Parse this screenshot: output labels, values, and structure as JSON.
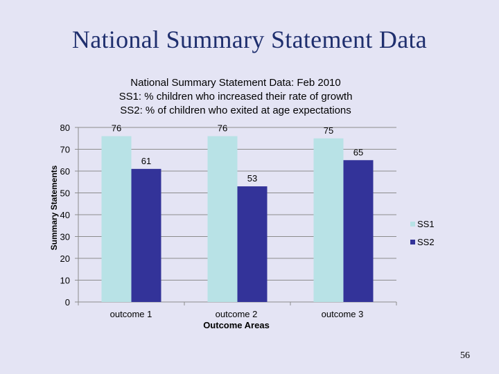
{
  "slide": {
    "title": "National Summary Statement Data",
    "page_number": "56"
  },
  "chart_data": {
    "type": "bar",
    "title_lines": [
      "National Summary Statement Data:  Feb 2010",
      "SS1:  % children who increased their rate of growth",
      "SS2:  % of children who exited at age expectations"
    ],
    "categories": [
      "outcome 1",
      "outcome 2",
      "outcome 3"
    ],
    "series": [
      {
        "name": "SS1",
        "values": [
          76,
          76,
          75
        ],
        "color": "#b8e2e6"
      },
      {
        "name": "SS2",
        "values": [
          61,
          53,
          65
        ],
        "color": "#333399"
      }
    ],
    "xlabel": "Outcome Areas",
    "ylabel": "Summary Statements",
    "ylim": [
      0,
      80
    ],
    "yticks": [
      0,
      10,
      20,
      30,
      40,
      50,
      60,
      70,
      80
    ],
    "grid": true,
    "legend": "right"
  }
}
